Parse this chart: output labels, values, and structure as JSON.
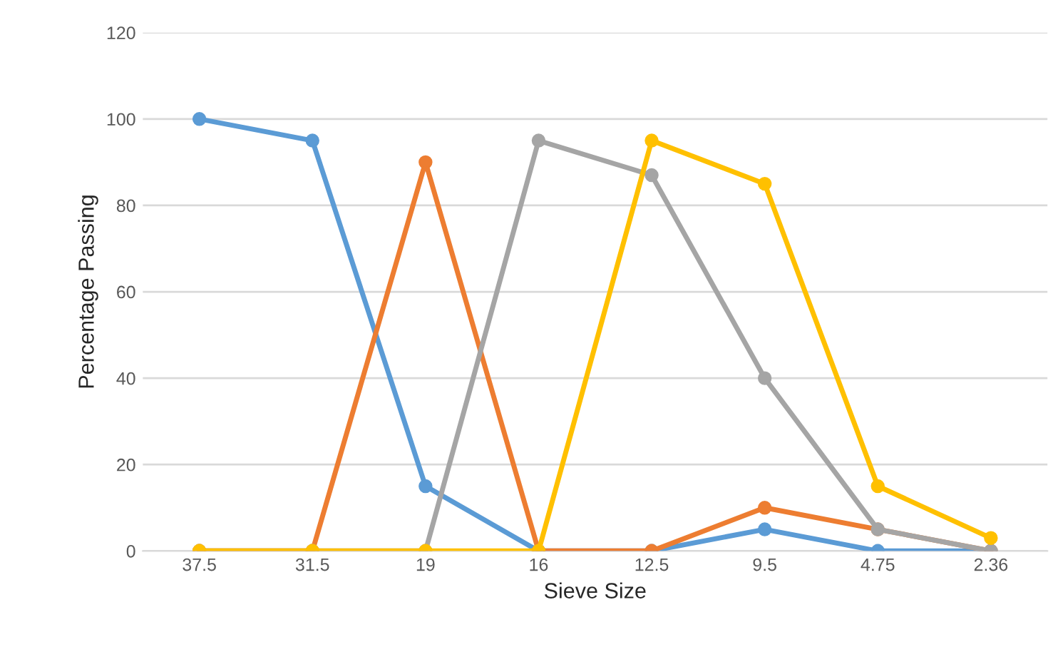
{
  "chart_data": {
    "type": "line",
    "xlabel": "Sieve Size",
    "ylabel": "Percentage Passing",
    "categories": [
      "37.5",
      "31.5",
      "19",
      "16",
      "12.5",
      "9.5",
      "4.75",
      "2.36"
    ],
    "series": [
      {
        "color": "#5b9bd5",
        "values": [
          100,
          95,
          15,
          0,
          0,
          5,
          0,
          0
        ]
      },
      {
        "color": "#ed7d31",
        "values": [
          0,
          0,
          90,
          0,
          0,
          10,
          5,
          0
        ]
      },
      {
        "color": "#a5a5a5",
        "values": [
          0,
          0,
          0,
          95,
          87,
          40,
          5,
          0
        ]
      },
      {
        "color": "#ffc000",
        "values": [
          0,
          0,
          0,
          0,
          95,
          85,
          15,
          3
        ]
      }
    ],
    "ylim": [
      0,
      120
    ],
    "yticks": [
      0,
      20,
      40,
      60,
      80,
      100,
      120
    ],
    "grid": "y",
    "marker": "circle",
    "line_style": "solid"
  }
}
